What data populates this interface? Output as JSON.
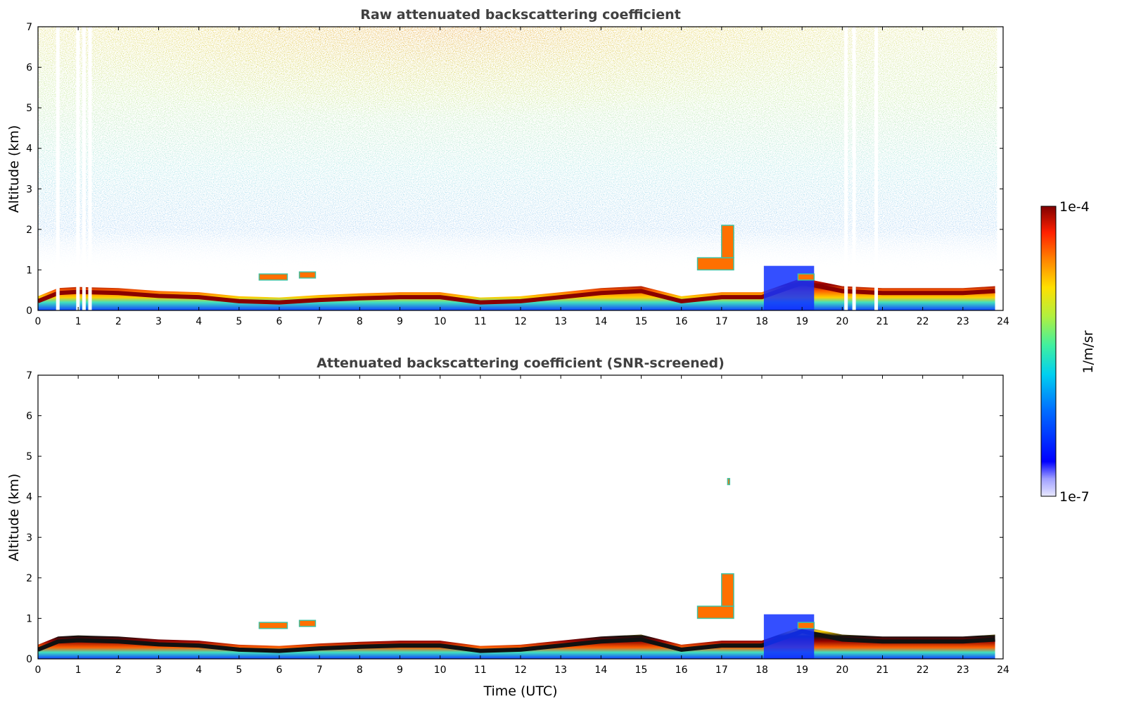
{
  "chart_data": [
    {
      "type": "heatmap",
      "title": "Raw attenuated backscattering coefficient",
      "xlabel": "",
      "ylabel": "Altitude (km)",
      "xlim": [
        0,
        24
      ],
      "ylim": [
        0,
        7
      ],
      "xticks": [
        "0",
        "1",
        "2",
        "3",
        "4",
        "5",
        "6",
        "7",
        "8",
        "9",
        "10",
        "11",
        "12",
        "13",
        "14",
        "15",
        "16",
        "17",
        "18",
        "19",
        "20",
        "21",
        "22",
        "23",
        "24"
      ],
      "yticks": [
        "0",
        "1",
        "2",
        "3",
        "4",
        "5",
        "6",
        "7"
      ],
      "layer_top_km": [
        {
          "t": 0,
          "z": 0.35
        },
        {
          "t": 0.5,
          "z": 0.55
        },
        {
          "t": 1,
          "z": 0.58
        },
        {
          "t": 2,
          "z": 0.55
        },
        {
          "t": 3,
          "z": 0.48
        },
        {
          "t": 4,
          "z": 0.45
        },
        {
          "t": 5,
          "z": 0.35
        },
        {
          "t": 6,
          "z": 0.32
        },
        {
          "t": 7,
          "z": 0.38
        },
        {
          "t": 8,
          "z": 0.42
        },
        {
          "t": 9,
          "z": 0.45
        },
        {
          "t": 10,
          "z": 0.45
        },
        {
          "t": 11,
          "z": 0.32
        },
        {
          "t": 12,
          "z": 0.35
        },
        {
          "t": 13,
          "z": 0.45
        },
        {
          "t": 14,
          "z": 0.55
        },
        {
          "t": 15,
          "z": 0.6
        },
        {
          "t": 16,
          "z": 0.35
        },
        {
          "t": 17,
          "z": 0.45
        },
        {
          "t": 18,
          "z": 0.45
        },
        {
          "t": 19,
          "z": 0.8
        },
        {
          "t": 20,
          "z": 0.6
        },
        {
          "t": 21,
          "z": 0.55
        },
        {
          "t": 22,
          "z": 0.55
        },
        {
          "t": 23,
          "z": 0.55
        },
        {
          "t": 23.8,
          "z": 0.6
        }
      ],
      "cloud_features": [
        {
          "t0": 5.5,
          "t1": 6.2,
          "z0": 0.75,
          "z1": 0.9
        },
        {
          "t0": 6.5,
          "t1": 6.9,
          "z0": 0.8,
          "z1": 0.95
        },
        {
          "t0": 16.4,
          "t1": 17.3,
          "z0": 1.0,
          "z1": 1.3
        },
        {
          "t0": 17.0,
          "t1": 17.3,
          "z0": 1.3,
          "z1": 2.1
        },
        {
          "t0": 18.9,
          "t1": 19.3,
          "z0": 0.75,
          "z1": 0.9
        }
      ],
      "data_gaps_hours": [
        0.45,
        0.95,
        1.1,
        1.25,
        20.05,
        20.25,
        20.8
      ]
    },
    {
      "type": "heatmap",
      "title": "Attenuated backscattering coefficient (SNR-screened)",
      "xlabel": "Time (UTC)",
      "ylabel": "Altitude (km)",
      "xlim": [
        0,
        24
      ],
      "ylim": [
        0,
        7
      ],
      "xticks": [
        "0",
        "1",
        "2",
        "3",
        "4",
        "5",
        "6",
        "7",
        "8",
        "9",
        "10",
        "11",
        "12",
        "13",
        "14",
        "15",
        "16",
        "17",
        "18",
        "19",
        "20",
        "21",
        "22",
        "23",
        "24"
      ],
      "yticks": [
        "0",
        "1",
        "2",
        "3",
        "4",
        "5",
        "6",
        "7"
      ],
      "screened_above_km": 0.6,
      "cloud_features": [
        {
          "t0": 5.5,
          "t1": 6.2,
          "z0": 0.75,
          "z1": 0.9
        },
        {
          "t0": 6.5,
          "t1": 6.9,
          "z0": 0.8,
          "z1": 0.95
        },
        {
          "t0": 16.4,
          "t1": 17.3,
          "z0": 1.0,
          "z1": 1.3
        },
        {
          "t0": 17.0,
          "t1": 17.3,
          "z0": 1.3,
          "z1": 2.1
        },
        {
          "t0": 17.15,
          "t1": 17.2,
          "z0": 4.3,
          "z1": 4.45
        },
        {
          "t0": 18.9,
          "t1": 19.3,
          "z0": 0.75,
          "z1": 0.9
        }
      ]
    }
  ],
  "colorbar": {
    "label": "1/m/sr",
    "max_label": "1e-4",
    "min_label": "1e-7",
    "colors": [
      "#e8e8ff",
      "#b4b4ff",
      "#6464ff",
      "#0000ff",
      "#0050ff",
      "#00a0ff",
      "#00e0e0",
      "#30f0a0",
      "#80ff60",
      "#d0f030",
      "#ffd000",
      "#ff8000",
      "#ff2000",
      "#c00000",
      "#800000"
    ]
  }
}
